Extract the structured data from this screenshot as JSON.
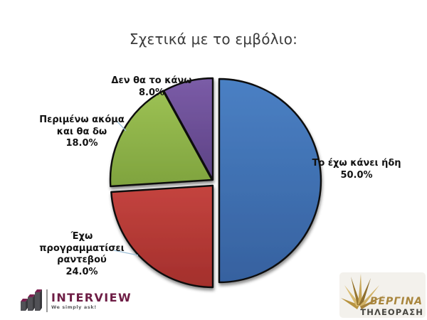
{
  "chart_data": {
    "type": "pie",
    "title": "Σχετικά με το εμβόλιο:",
    "direction": "clockwise",
    "start_angle_deg": 0,
    "legend_position": "none",
    "slices": [
      {
        "label": "Το έχω κάνει ήδη",
        "value": 50.0,
        "pct_label": "50.0%",
        "color": "#3E6FB2"
      },
      {
        "label": "Έχω προγραμματίσει ραντεβού",
        "value": 24.0,
        "pct_label": "24.0%",
        "color": "#BB3935"
      },
      {
        "label": "Περιμένω ακόμα και θα δω",
        "value": 18.0,
        "pct_label": "18.0%",
        "color": "#8FB44A"
      },
      {
        "label": "Δεν θα το κάνω",
        "value": 8.0,
        "pct_label": "8.0%",
        "color": "#6C4E97"
      }
    ]
  },
  "callouts": {
    "blue": {
      "line1": "Το έχω κάνει ήδη",
      "pct": "50.0%"
    },
    "red": {
      "line1": "Έχω προγραμματίσει",
      "line2": "ραντεβού",
      "pct": "24.0%"
    },
    "green": {
      "line1": "Περιμένω ακόμα",
      "line2": "και θα δω",
      "pct": "18.0%"
    },
    "purple": {
      "line1": "Δεν θα το κάνω",
      "pct": "8.0%"
    }
  },
  "logos": {
    "interview": {
      "name": "INTERVIEW",
      "tagline": "We simply ask!",
      "accent_color": "#6E1D45"
    },
    "vergina": {
      "brand": "ΒΕΡΓΙΝΑ",
      "sub": "ΤΗΛΕΟΡΑΣΗ",
      "accent_color": "#A8853C"
    }
  }
}
